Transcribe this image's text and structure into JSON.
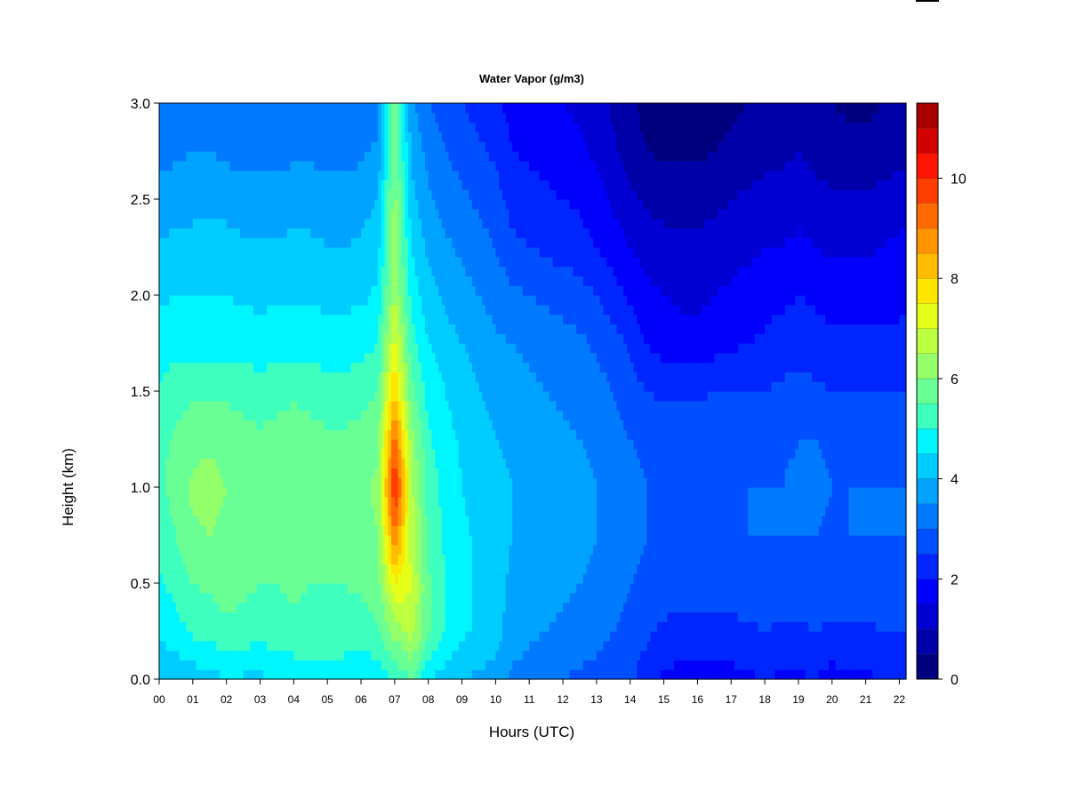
{
  "chart_data": {
    "type": "heatmap",
    "title": "Water Vapor (g/m3)",
    "xlabel": "Hours (UTC)",
    "ylabel": "Height (km)",
    "xlim": [
      0,
      22.2
    ],
    "ylim": [
      0,
      3.0
    ],
    "x_ticks": [
      "00",
      "01",
      "02",
      "03",
      "04",
      "05",
      "06",
      "07",
      "08",
      "09",
      "10",
      "11",
      "12",
      "13",
      "14",
      "15",
      "16",
      "17",
      "18",
      "19",
      "20",
      "21",
      "22"
    ],
    "y_ticks": [
      "0.0",
      "0.5",
      "1.0",
      "1.5",
      "2.0",
      "2.5",
      "3.0"
    ],
    "colorbar": {
      "min": 0,
      "max": 10.5,
      "step": 0.5,
      "tick_labels": [
        "0",
        "2",
        "4",
        "6",
        "8",
        "10"
      ],
      "colors": [
        "#00007F",
        "#0000A8",
        "#0000D2",
        "#0000FB",
        "#0026FF",
        "#0050FF",
        "#007AFF",
        "#00A3FF",
        "#00CDFF",
        "#00F6FF",
        "#3FFFBF",
        "#69FF95",
        "#93FF6B",
        "#BDFF41",
        "#E6FF18",
        "#FFE600",
        "#FFBD00",
        "#FF9300",
        "#FF6900",
        "#FF3F00",
        "#FF1600",
        "#D20000",
        "#A80000"
      ]
    },
    "x": [
      0,
      0.5,
      1,
      1.5,
      2,
      2.5,
      3,
      3.5,
      4,
      4.5,
      5,
      5.5,
      6,
      6.5,
      7,
      7.5,
      8,
      8.5,
      9,
      9.5,
      10,
      10.5,
      11,
      11.5,
      12,
      12.5,
      13,
      13.5,
      14,
      14.5,
      15,
      15.5,
      16,
      16.5,
      17,
      17.5,
      18,
      18.5,
      19,
      19.5,
      20,
      20.5,
      21,
      21.5,
      22
    ],
    "y": [
      0,
      0.25,
      0.5,
      0.75,
      1.0,
      1.25,
      1.5,
      1.75,
      2.0,
      2.25,
      2.5,
      2.75,
      3.0
    ],
    "z": [
      [
        4.0,
        4.1,
        4.2,
        4.3,
        4.5,
        4.4,
        4.4,
        4.6,
        4.6,
        4.7,
        4.7,
        4.7,
        4.6,
        4.7,
        5.0,
        5.5,
        4.5,
        4.3,
        4.0,
        3.9,
        3.8,
        3.4,
        3.3,
        3.1,
        3.0,
        2.9,
        2.8,
        2.7,
        2.6,
        2.2,
        1.9,
        1.8,
        1.7,
        1.8,
        1.8,
        1.9,
        2.0,
        1.9,
        1.9,
        2.0,
        1.8,
        1.9,
        1.9,
        2.0,
        2.1
      ],
      [
        4.6,
        4.8,
        5.1,
        5.2,
        5.4,
        5.3,
        5.2,
        5.3,
        5.4,
        5.3,
        5.3,
        5.3,
        5.2,
        5.4,
        6.2,
        6.7,
        5.6,
        5.0,
        4.6,
        4.4,
        4.2,
        3.7,
        3.6,
        3.5,
        3.4,
        3.3,
        3.2,
        3.0,
        2.8,
        2.6,
        2.4,
        2.3,
        2.3,
        2.3,
        2.4,
        2.4,
        2.5,
        2.4,
        2.4,
        2.5,
        2.4,
        2.4,
        2.4,
        2.5,
        2.5
      ],
      [
        4.9,
        5.2,
        5.5,
        5.6,
        5.7,
        5.6,
        5.5,
        5.5,
        5.6,
        5.5,
        5.5,
        5.5,
        5.6,
        5.8,
        7.5,
        7.0,
        5.6,
        5.0,
        4.6,
        4.4,
        4.2,
        3.9,
        3.8,
        3.7,
        3.6,
        3.5,
        3.4,
        3.2,
        3.0,
        2.9,
        2.8,
        2.7,
        2.7,
        2.7,
        2.7,
        2.8,
        2.8,
        2.8,
        2.8,
        2.9,
        2.8,
        2.8,
        2.8,
        2.8,
        2.9
      ],
      [
        5.2,
        5.5,
        5.9,
        6.0,
        5.9,
        5.8,
        5.7,
        5.8,
        5.9,
        5.8,
        5.7,
        5.7,
        5.8,
        6.0,
        9.0,
        6.7,
        5.4,
        4.9,
        4.6,
        4.4,
        4.2,
        4.0,
        3.9,
        3.8,
        3.7,
        3.6,
        3.5,
        3.3,
        3.1,
        3.0,
        2.9,
        2.9,
        2.9,
        2.9,
        2.9,
        3.0,
        3.0,
        3.0,
        3.0,
        3.0,
        2.9,
        3.0,
        3.0,
        3.0,
        3.0
      ],
      [
        5.4,
        5.7,
        6.1,
        6.2,
        6.0,
        5.9,
        5.9,
        6.0,
        6.0,
        5.9,
        5.8,
        5.8,
        5.9,
        6.1,
        10.2,
        6.6,
        5.3,
        4.8,
        4.5,
        4.3,
        4.1,
        4.0,
        3.9,
        3.8,
        3.7,
        3.6,
        3.5,
        3.3,
        3.1,
        3.0,
        3.0,
        3.0,
        3.0,
        3.0,
        3.0,
        3.0,
        3.0,
        3.0,
        3.1,
        3.1,
        3.0,
        3.0,
        3.0,
        3.0,
        3.0
      ],
      [
        5.3,
        5.6,
        5.8,
        5.9,
        5.8,
        5.7,
        5.6,
        5.7,
        5.8,
        5.7,
        5.6,
        5.6,
        5.7,
        5.9,
        9.3,
        6.2,
        5.1,
        4.7,
        4.4,
        4.2,
        4.0,
        3.9,
        3.8,
        3.7,
        3.6,
        3.5,
        3.4,
        3.2,
        3.0,
        2.9,
        2.9,
        2.9,
        2.9,
        2.9,
        2.9,
        2.9,
        2.9,
        2.9,
        3.0,
        3.0,
        2.9,
        2.9,
        2.9,
        2.9,
        2.9
      ],
      [
        5.1,
        5.3,
        5.4,
        5.4,
        5.4,
        5.3,
        5.2,
        5.3,
        5.4,
        5.3,
        5.2,
        5.2,
        5.3,
        5.5,
        8.0,
        5.7,
        4.8,
        4.5,
        4.2,
        4.0,
        3.8,
        3.7,
        3.6,
        3.5,
        3.4,
        3.3,
        3.2,
        3.0,
        2.7,
        2.5,
        2.4,
        2.4,
        2.4,
        2.5,
        2.5,
        2.5,
        2.5,
        2.6,
        2.7,
        2.6,
        2.5,
        2.5,
        2.5,
        2.5,
        2.5
      ],
      [
        4.7,
        4.8,
        4.8,
        4.8,
        4.8,
        4.8,
        4.7,
        4.8,
        4.8,
        4.8,
        4.7,
        4.7,
        4.8,
        5.0,
        7.2,
        5.2,
        4.5,
        4.2,
        4.0,
        3.8,
        3.6,
        3.5,
        3.4,
        3.3,
        3.2,
        3.1,
        2.9,
        2.7,
        2.4,
        2.0,
        1.8,
        1.7,
        1.7,
        1.8,
        1.9,
        2.0,
        2.1,
        2.2,
        2.3,
        2.2,
        2.1,
        2.1,
        2.1,
        2.1,
        2.1
      ],
      [
        4.4,
        4.5,
        4.5,
        4.5,
        4.5,
        4.4,
        4.4,
        4.4,
        4.4,
        4.4,
        4.4,
        4.4,
        4.4,
        4.6,
        6.5,
        4.8,
        4.2,
        3.9,
        3.7,
        3.5,
        3.3,
        3.1,
        3.0,
        2.9,
        2.8,
        2.7,
        2.5,
        2.2,
        1.9,
        1.6,
        1.5,
        1.4,
        1.4,
        1.5,
        1.6,
        1.7,
        1.8,
        1.9,
        2.0,
        1.9,
        1.8,
        1.8,
        1.8,
        1.8,
        1.9
      ],
      [
        4.1,
        4.1,
        4.2,
        4.2,
        4.2,
        4.1,
        4.1,
        4.1,
        4.1,
        4.1,
        4.0,
        4.0,
        4.1,
        4.3,
        6.3,
        4.5,
        3.9,
        3.6,
        3.4,
        3.2,
        3.0,
        2.6,
        2.5,
        2.4,
        2.3,
        2.2,
        2.0,
        1.8,
        1.5,
        1.3,
        1.2,
        1.1,
        1.1,
        1.2,
        1.3,
        1.4,
        1.5,
        1.5,
        1.6,
        1.5,
        1.4,
        1.4,
        1.4,
        1.5,
        1.6
      ],
      [
        3.7,
        3.8,
        3.8,
        3.8,
        3.8,
        3.7,
        3.7,
        3.7,
        3.8,
        3.8,
        3.7,
        3.7,
        3.8,
        4.0,
        6.2,
        4.2,
        3.6,
        3.3,
        3.1,
        2.9,
        2.7,
        2.3,
        2.2,
        2.1,
        2.0,
        1.9,
        1.7,
        1.4,
        1.1,
        0.9,
        0.8,
        0.8,
        0.8,
        0.9,
        1.0,
        1.1,
        1.2,
        1.2,
        1.3,
        1.2,
        1.1,
        1.1,
        1.1,
        1.2,
        1.3
      ],
      [
        3.3,
        3.4,
        3.5,
        3.5,
        3.4,
        3.3,
        3.3,
        3.3,
        3.4,
        3.4,
        3.3,
        3.3,
        3.4,
        3.6,
        6.0,
        3.9,
        3.3,
        3.0,
        2.8,
        2.6,
        2.4,
        2.0,
        1.9,
        1.8,
        1.7,
        1.6,
        1.4,
        1.1,
        0.8,
        0.5,
        0.4,
        0.4,
        0.4,
        0.5,
        0.6,
        0.7,
        0.8,
        0.9,
        1.0,
        0.8,
        0.7,
        0.7,
        0.6,
        0.7,
        0.8
      ],
      [
        3.0,
        3.1,
        3.2,
        3.2,
        3.1,
        3.0,
        3.0,
        3.0,
        3.1,
        3.1,
        3.0,
        3.0,
        3.1,
        3.3,
        5.8,
        3.6,
        3.0,
        2.7,
        2.5,
        2.3,
        2.1,
        1.8,
        1.7,
        1.6,
        1.5,
        1.4,
        1.2,
        0.9,
        0.6,
        0.3,
        0.2,
        0.2,
        0.2,
        0.3,
        0.4,
        0.5,
        0.6,
        0.7,
        0.8,
        0.6,
        0.5,
        0.4,
        0.4,
        0.5,
        0.6
      ]
    ]
  }
}
